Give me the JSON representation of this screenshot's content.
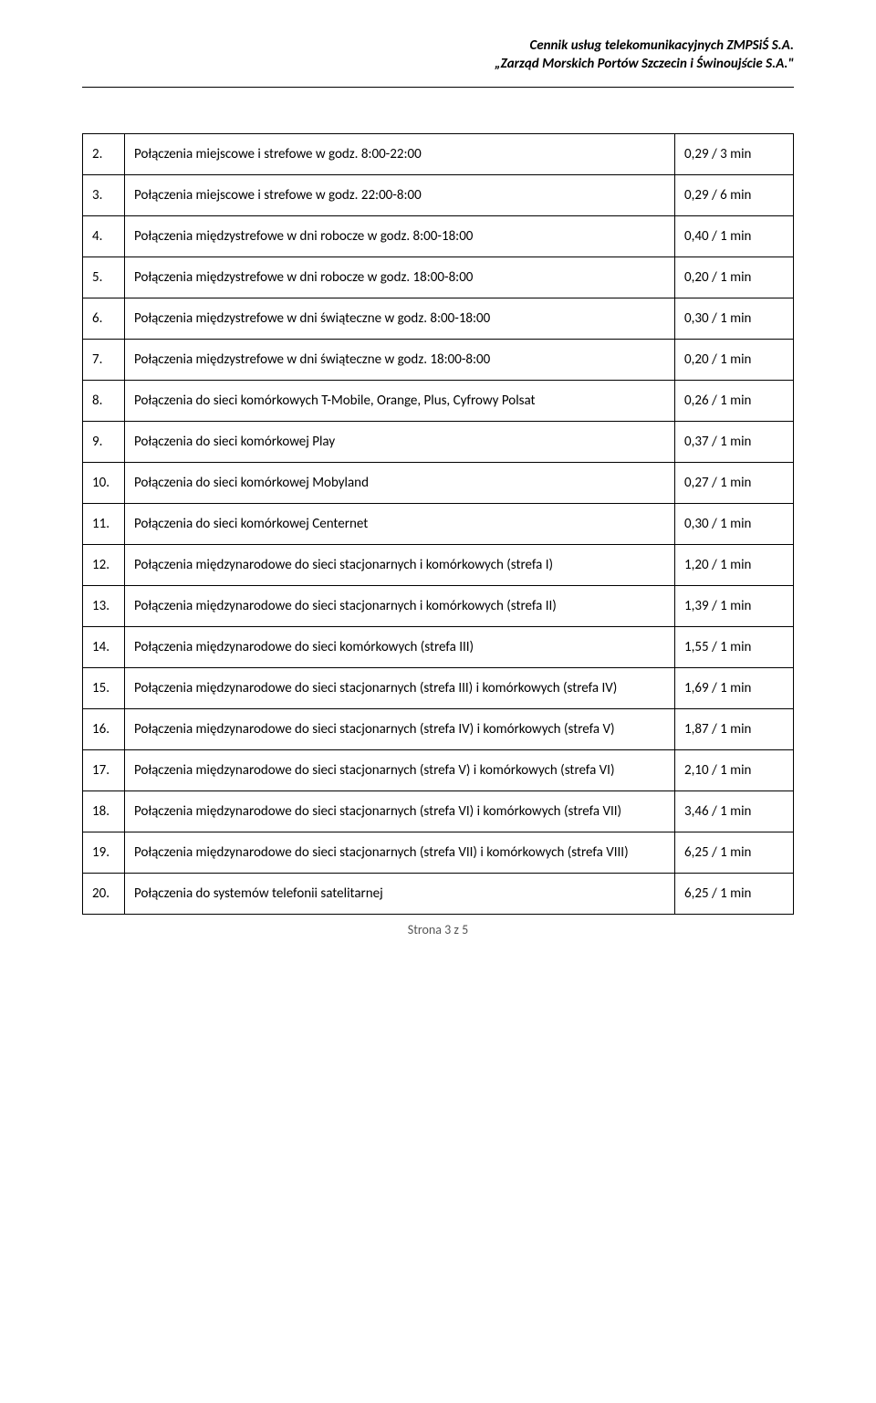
{
  "header": {
    "line1": "Cennik usług telekomunikacyjnych ZMPSiŚ S.A.",
    "line2": "„Zarząd Morskich Portów Szczecin i Świnoujście S.A.\""
  },
  "rows": [
    {
      "num": "2.",
      "desc": "Połączenia miejscowe i strefowe w godz. 8:00-22:00",
      "price": "0,29 / 3 min"
    },
    {
      "num": "3.",
      "desc": "Połączenia miejscowe i strefowe w godz. 22:00-8:00",
      "price": "0,29 / 6 min"
    },
    {
      "num": "4.",
      "desc": "Połączenia międzystrefowe w dni robocze w godz. 8:00-18:00",
      "price": "0,40 / 1 min"
    },
    {
      "num": "5.",
      "desc": "Połączenia międzystrefowe w dni robocze w godz. 18:00-8:00",
      "price": "0,20 / 1 min"
    },
    {
      "num": "6.",
      "desc": "Połączenia międzystrefowe w dni świąteczne w godz. 8:00-18:00",
      "price": "0,30 / 1 min"
    },
    {
      "num": "7.",
      "desc": "Połączenia międzystrefowe w dni świąteczne w godz. 18:00-8:00",
      "price": "0,20 / 1 min"
    },
    {
      "num": "8.",
      "desc": "Połączenia do sieci komórkowych T-Mobile, Orange, Plus, Cyfrowy Polsat",
      "price": "0,26 / 1 min"
    },
    {
      "num": "9.",
      "desc": "Połączenia do sieci komórkowej Play",
      "price": "0,37 / 1 min"
    },
    {
      "num": "10.",
      "desc": "Połączenia do sieci komórkowej Mobyland",
      "price": "0,27 / 1 min"
    },
    {
      "num": "11.",
      "desc": "Połączenia do sieci komórkowej Centernet",
      "price": "0,30 / 1 min"
    },
    {
      "num": "12.",
      "desc": "Połączenia międzynarodowe do sieci stacjonarnych i komórkowych (strefa I)",
      "price": "1,20 / 1 min"
    },
    {
      "num": "13.",
      "desc": "Połączenia międzynarodowe do sieci stacjonarnych i komórkowych (strefa II)",
      "price": "1,39 / 1 min"
    },
    {
      "num": "14.",
      "desc": "Połączenia międzynarodowe do sieci komórkowych (strefa III)",
      "price": "1,55 / 1 min"
    },
    {
      "num": "15.",
      "desc": "Połączenia międzynarodowe do sieci stacjonarnych (strefa III) i komórkowych (strefa IV)",
      "price": "1,69 / 1 min"
    },
    {
      "num": "16.",
      "desc": "Połączenia międzynarodowe do sieci stacjonarnych (strefa IV) i komórkowych (strefa V)",
      "price": "1,87 / 1 min"
    },
    {
      "num": "17.",
      "desc": "Połączenia międzynarodowe do sieci stacjonarnych (strefa V) i komórkowych (strefa VI)",
      "price": "2,10 / 1 min"
    },
    {
      "num": "18.",
      "desc": "Połączenia międzynarodowe do sieci stacjonarnych (strefa VI) i komórkowych (strefa VII)",
      "price": "3,46 / 1 min"
    },
    {
      "num": "19.",
      "desc": "Połączenia międzynarodowe do sieci stacjonarnych (strefa VII) i komórkowych (strefa VIII)",
      "price": "6,25 / 1 min"
    },
    {
      "num": "20.",
      "desc": "Połączenia do systemów telefonii satelitarnej",
      "price": "6,25 / 1 min"
    }
  ],
  "footer": {
    "page_label": "Strona 3 z 5"
  }
}
